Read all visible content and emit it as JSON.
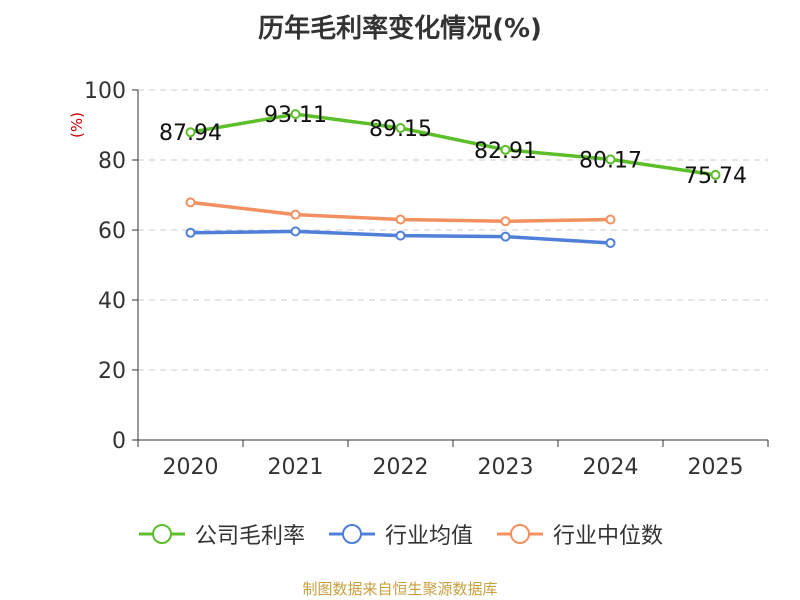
{
  "chart_data": {
    "type": "line",
    "title": "历年毛利率变化情况(%)",
    "ylabel": "(%)",
    "xlabel": "",
    "categories": [
      "2020",
      "2021",
      "2022",
      "2023",
      "2024",
      "2025"
    ],
    "ylim": [
      0,
      100
    ],
    "yticks": [
      0,
      20,
      40,
      60,
      80,
      100
    ],
    "grid": true,
    "legend_position": "bottom",
    "series": [
      {
        "name": "公司毛利率",
        "color": "#5cbf2a",
        "values": [
          87.94,
          93.11,
          89.15,
          82.91,
          80.17,
          75.74
        ],
        "labels": [
          "87.94",
          "93.11",
          "89.15",
          "82.91",
          "80.17",
          "75.74"
        ]
      },
      {
        "name": "行业均值",
        "color": "#4f7fd9",
        "values": [
          59.2,
          59.6,
          58.4,
          58.1,
          56.3,
          null
        ]
      },
      {
        "name": "行业中位数",
        "color": "#f39060",
        "values": [
          67.9,
          64.4,
          63.0,
          62.5,
          63.0,
          null
        ]
      }
    ]
  },
  "source": "制图数据来自恒生聚源数据库"
}
